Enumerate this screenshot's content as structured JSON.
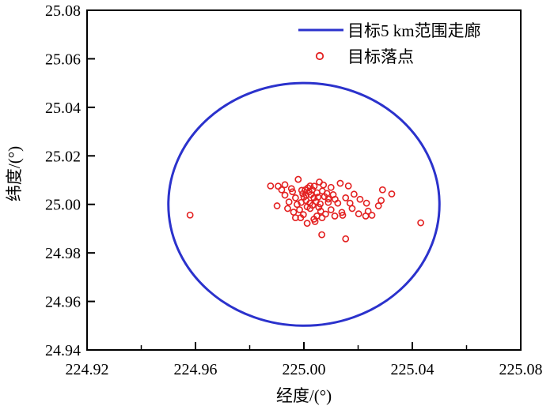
{
  "figure": {
    "background_color": "#ffffff",
    "frame_color": "#000000"
  },
  "chart_data": {
    "type": "scatter",
    "title": "",
    "xlabel": "经度/(°)",
    "ylabel": "纬度/(°)",
    "xlim": [
      224.92,
      225.08
    ],
    "ylim": [
      24.94,
      25.08
    ],
    "grid": false,
    "x_major_ticks": [
      224.92,
      224.96,
      225.0,
      225.04,
      225.08
    ],
    "x_major_tick_labels": [
      "224.92",
      "224.96",
      "225.00",
      "225.04",
      "225.08"
    ],
    "x_minor_ticks": [
      224.94,
      224.98,
      225.02,
      225.06
    ],
    "y_major_ticks": [
      24.94,
      24.96,
      24.98,
      25.0,
      25.02,
      25.04,
      25.06,
      25.08
    ],
    "y_major_tick_labels": [
      "24.94",
      "24.96",
      "24.98",
      "25.00",
      "25.02",
      "25.04",
      "25.06",
      "25.08"
    ],
    "legend": {
      "position": "top-right-inside",
      "border": "none",
      "entries": [
        {
          "label": "目标5 km范围走廊",
          "symbol": "line",
          "color": "#2b32cc"
        },
        {
          "label": "目标落点",
          "symbol": "open-circle",
          "color": "#e32020"
        }
      ]
    },
    "corridor_circle": {
      "name": "目标5 km范围走廊",
      "center_lon": 225.0,
      "center_lat": 25.0,
      "radius_deg": 0.05,
      "color": "#2b32cc",
      "stroke_width": 3
    },
    "impact_points": {
      "name": "目标落点",
      "color": "#e32020",
      "marker": "open-circle",
      "points": [
        [
          224.958,
          24.9956
        ],
        [
          225.0431,
          24.9924
        ],
        [
          225.0066,
          24.9875
        ],
        [
          225.0154,
          24.9858
        ],
        [
          224.9877,
          25.0076
        ],
        [
          224.993,
          25.0081
        ],
        [
          224.9954,
          25.0065
        ],
        [
          224.9979,
          25.0103
        ],
        [
          225.0023,
          25.0076
        ],
        [
          225.0057,
          25.0092
        ],
        [
          225.01,
          25.007
        ],
        [
          225.0134,
          25.0087
        ],
        [
          225.0164,
          25.0076
        ],
        [
          224.993,
          25.0038
        ],
        [
          224.9969,
          25.0027
        ],
        [
          225.0008,
          25.0038
        ],
        [
          225.0037,
          25.0027
        ],
        [
          225.0076,
          25.0032
        ],
        [
          225.0115,
          25.0021
        ],
        [
          225.0154,
          25.0027
        ],
        [
          224.9901,
          24.9994
        ],
        [
          224.994,
          24.9983
        ],
        [
          224.9984,
          24.9978
        ],
        [
          225.0023,
          24.9983
        ],
        [
          225.0062,
          24.9972
        ],
        [
          225.01,
          24.9978
        ],
        [
          225.014,
          24.9967
        ],
        [
          225.0178,
          24.9983
        ],
        [
          224.9969,
          24.9945
        ],
        [
          225.0037,
          24.9939
        ],
        [
          225.029,
          25.006
        ],
        [
          225.0324,
          25.0043
        ],
        [
          225.0285,
          25.0016
        ],
        [
          225.0207,
          25.0021
        ],
        [
          225.0231,
          25.0005
        ],
        [
          225.0275,
          24.9994
        ],
        [
          225.0237,
          24.9972
        ],
        [
          225.0202,
          24.9961
        ],
        [
          224.9988,
          24.9945
        ],
        [
          225.0012,
          24.9922
        ],
        [
          225.0041,
          24.9929
        ],
        [
          225.0067,
          24.9945
        ],
        [
          225.0114,
          24.9952
        ],
        [
          225.0143,
          24.9955
        ],
        [
          225.0228,
          24.9952
        ],
        [
          225.0251,
          24.9955
        ],
        [
          225.0005,
          25.006
        ],
        [
          225.0019,
          25.0052
        ],
        [
          224.9996,
          25.0044
        ],
        [
          225.0031,
          25.006
        ],
        [
          225.0048,
          25.0048
        ],
        [
          225.0008,
          25.0016
        ],
        [
          225.0022,
          25.0005
        ],
        [
          224.999,
          25.0008
        ],
        [
          225.0045,
          25.0012
        ],
        [
          225.006,
          25.0002
        ],
        [
          225.0032,
          24.9996
        ],
        [
          225.0012,
          24.999
        ],
        [
          224.9975,
          25.0
        ],
        [
          225.0052,
          25.003
        ],
        [
          225.0068,
          25.0055
        ],
        [
          225.0085,
          25.0045
        ],
        [
          225.009,
          25.0008
        ],
        [
          225.0,
          25.003
        ],
        [
          224.9958,
          25.0052
        ],
        [
          224.9945,
          25.001
        ],
        [
          225.0015,
          25.0068
        ],
        [
          225.0038,
          25.0075
        ],
        [
          225.0072,
          25.008
        ],
        [
          224.9992,
          25.0058
        ],
        [
          225.0026,
          25.004
        ],
        [
          225.0055,
          24.9988
        ],
        [
          225.008,
          24.996
        ],
        [
          224.9962,
          24.9968
        ],
        [
          225.0125,
          25.0005
        ],
        [
          225.0108,
          25.004
        ],
        [
          225.009,
          25.0022
        ],
        [
          224.9918,
          25.006
        ],
        [
          224.9905,
          25.0075
        ],
        [
          225.017,
          25.0005
        ],
        [
          225.0185,
          25.0042
        ],
        [
          224.9998,
          24.9958
        ],
        [
          225.0048,
          24.9952
        ]
      ]
    }
  }
}
